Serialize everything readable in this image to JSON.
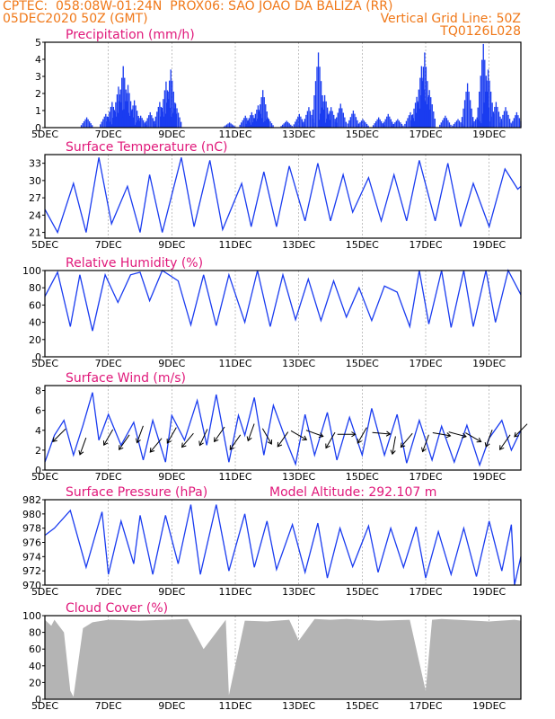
{
  "header": {
    "line1_left": "CPTEC:  058:08W-01:24N  PROX06: SAO JOAO DA BALIZA (RR)",
    "line2_left": "05DEC2020 50Z (GMT)",
    "line2_right": "Vertical Grid Line: 50Z",
    "line3_right": "TQ0126L028"
  },
  "x_labels": [
    "5DEC",
    "7DEC",
    "9DEC",
    "11DEC",
    "13DEC",
    "15DEC",
    "17DEC",
    "19DEC"
  ],
  "colors": {
    "accent": "#f07818",
    "title": "#e0187a",
    "line": "#1a3cf0",
    "bar": "#1a3cf0",
    "cloud": "#b4b4b4",
    "grid": "#999999"
  },
  "chart_data": [
    {
      "type": "bar",
      "title": "Precipitation (mm/h)",
      "ylim": [
        0,
        5
      ],
      "yticks": [
        "0",
        "1",
        "2",
        "3",
        "4",
        "5"
      ],
      "x_days": [
        5,
        20
      ],
      "peaks": [
        [
          6.3,
          0.6
        ],
        [
          6.9,
          0.8
        ],
        [
          7.1,
          1.5
        ],
        [
          7.3,
          2.4
        ],
        [
          7.45,
          3.6
        ],
        [
          7.6,
          2.5
        ],
        [
          7.8,
          1.6
        ],
        [
          8.0,
          0.7
        ],
        [
          8.3,
          0.9
        ],
        [
          8.6,
          1.5
        ],
        [
          8.8,
          2.7
        ],
        [
          8.95,
          3.4
        ],
        [
          9.1,
          1.4
        ],
        [
          10.8,
          0.3
        ],
        [
          11.3,
          0.7
        ],
        [
          11.5,
          0.9
        ],
        [
          11.7,
          1.3
        ],
        [
          11.85,
          2.2
        ],
        [
          12.0,
          0.6
        ],
        [
          12.6,
          0.4
        ],
        [
          13.0,
          0.8
        ],
        [
          13.3,
          1.2
        ],
        [
          13.6,
          4.4
        ],
        [
          13.8,
          1.9
        ],
        [
          14.0,
          1.2
        ],
        [
          14.3,
          1.4
        ],
        [
          14.7,
          1.0
        ],
        [
          15.0,
          0.5
        ],
        [
          15.5,
          0.6
        ],
        [
          15.8,
          0.8
        ],
        [
          16.1,
          0.5
        ],
        [
          16.5,
          0.9
        ],
        [
          16.7,
          1.8
        ],
        [
          16.85,
          3.6
        ],
        [
          16.95,
          4.4
        ],
        [
          17.1,
          2.2
        ],
        [
          17.6,
          0.7
        ],
        [
          18.0,
          0.5
        ],
        [
          18.3,
          2.6
        ],
        [
          18.6,
          0.6
        ],
        [
          18.8,
          4.9
        ],
        [
          18.95,
          3.4
        ],
        [
          19.2,
          1.5
        ],
        [
          19.5,
          1.2
        ],
        [
          19.85,
          0.9
        ]
      ]
    },
    {
      "type": "line",
      "title": "Surface Temperature (nC)",
      "ylim": [
        20,
        34.5
      ],
      "yticks": [
        "21",
        "24",
        "27",
        "30",
        "33"
      ],
      "x": [
        5,
        5.4,
        5.9,
        6.3,
        6.7,
        7.1,
        7.6,
        8.0,
        8.3,
        8.7,
        9.3,
        9.7,
        10.2,
        10.6,
        11.2,
        11.5,
        11.9,
        12.3,
        12.7,
        13.2,
        13.6,
        14.0,
        14.4,
        14.7,
        15.2,
        15.6,
        16.0,
        16.4,
        16.8,
        17.3,
        17.7,
        18.1,
        18.5,
        19.0,
        19.5,
        19.9,
        20.0
      ],
      "values": [
        25,
        21,
        29.5,
        21,
        34,
        22.5,
        29,
        21,
        31,
        21,
        34,
        22,
        33.5,
        21.5,
        29.5,
        22,
        31.5,
        22,
        32.5,
        23,
        33,
        23,
        31,
        24.5,
        30.5,
        23,
        31,
        23,
        33.5,
        23,
        33,
        22,
        29.5,
        22,
        32,
        28.5,
        29
      ]
    },
    {
      "type": "line",
      "title": "Relative Humidity (%)",
      "ylim": [
        0,
        100
      ],
      "yticks": [
        "0",
        "20",
        "40",
        "60",
        "80",
        "100"
      ],
      "x": [
        5,
        5.4,
        5.8,
        6.1,
        6.5,
        6.9,
        7.3,
        7.7,
        8.0,
        8.3,
        8.7,
        9.2,
        9.6,
        10.0,
        10.4,
        10.8,
        11.3,
        11.7,
        12.1,
        12.5,
        12.9,
        13.3,
        13.7,
        14.1,
        14.5,
        14.9,
        15.3,
        15.7,
        16.1,
        16.5,
        16.8,
        17.1,
        17.5,
        17.8,
        18.2,
        18.5,
        18.9,
        19.2,
        19.6,
        20.0
      ],
      "values": [
        70,
        98,
        35,
        95,
        30,
        95,
        63,
        95,
        98,
        65,
        100,
        88,
        37,
        95,
        36,
        95,
        40,
        100,
        35,
        95,
        43,
        90,
        42,
        88,
        46,
        80,
        42,
        82,
        75,
        35,
        100,
        38,
        100,
        34,
        100,
        35,
        100,
        40,
        100,
        72
      ]
    },
    {
      "type": "line",
      "title": "Surface Wind (m/s)",
      "ylim": [
        0,
        8.5
      ],
      "yticks": [
        "0",
        "2",
        "4",
        "6",
        "8"
      ],
      "x": [
        5,
        5.3,
        5.6,
        5.9,
        6.2,
        6.5,
        6.7,
        7.0,
        7.4,
        7.8,
        8.1,
        8.4,
        8.8,
        9.0,
        9.4,
        9.8,
        10.1,
        10.4,
        10.8,
        11.1,
        11.3,
        11.6,
        11.9,
        12.2,
        12.6,
        12.9,
        13.2,
        13.5,
        13.9,
        14.2,
        14.6,
        15.0,
        15.3,
        15.7,
        16.1,
        16.4,
        16.8,
        17.2,
        17.5,
        17.9,
        18.3,
        18.7,
        19.0,
        19.4,
        19.7,
        20.0
      ],
      "values": [
        0.8,
        3.5,
        5,
        1.5,
        4.5,
        7.8,
        3,
        5.6,
        2.5,
        4.8,
        1,
        5,
        0.8,
        5.5,
        3,
        7,
        2.5,
        7.6,
        0.8,
        5.5,
        3.5,
        7.3,
        1.5,
        6.5,
        3,
        0.6,
        5.6,
        1.5,
        5.8,
        1,
        5.3,
        1.5,
        6.2,
        1.5,
        5.6,
        0.7,
        5,
        1,
        4.4,
        0.8,
        4.5,
        0.5,
        3.2,
        5,
        2,
        4
      ]
    },
    {
      "type": "line",
      "title": "Surface Pressure (hPa)",
      "ylim": [
        970,
        982
      ],
      "yticks": [
        "970",
        "972",
        "974",
        "976",
        "978",
        "980",
        "982"
      ],
      "x": [
        5,
        5.3,
        5.8,
        6.3,
        6.8,
        7.0,
        7.4,
        7.8,
        8.0,
        8.4,
        8.8,
        9.2,
        9.6,
        9.9,
        10.4,
        10.8,
        11.3,
        11.6,
        12.0,
        12.3,
        12.8,
        13.2,
        13.6,
        13.9,
        14.3,
        14.7,
        15.2,
        15.5,
        15.9,
        16.3,
        16.7,
        17.0,
        17.4,
        17.8,
        18.2,
        18.6,
        19.0,
        19.4,
        19.7,
        19.8,
        20.0
      ],
      "values": [
        977,
        978,
        980.5,
        972.5,
        980.3,
        971.5,
        979,
        973,
        979.8,
        971.5,
        979.8,
        973,
        981.3,
        971.5,
        981.3,
        972,
        980,
        972.5,
        979,
        972.2,
        978.5,
        971.8,
        978.7,
        971,
        978,
        972.6,
        978.3,
        971.8,
        978,
        972.5,
        978.2,
        971,
        977.5,
        971.5,
        978,
        971.2,
        979,
        972,
        978.5,
        970,
        974
      ]
    },
    {
      "type": "area",
      "title": "Cloud Cover (%)",
      "ylim": [
        0,
        100
      ],
      "yticks": [
        "0",
        "20",
        "40",
        "60",
        "80",
        "100"
      ],
      "x": [
        5,
        5.2,
        5.3,
        5.6,
        5.8,
        5.9,
        6.2,
        6.5,
        7.0,
        8.0,
        9.5,
        10.0,
        10.7,
        10.8,
        11.3,
        12.0,
        12.7,
        13.0,
        13.5,
        14.0,
        14.5,
        15.5,
        16.5,
        17.0,
        17.2,
        17.5,
        18.0,
        19.0,
        19.8,
        20.0
      ],
      "values": [
        95,
        88,
        95,
        80,
        10,
        3,
        85,
        92,
        95,
        94,
        96,
        60,
        95,
        5,
        94,
        93,
        95,
        70,
        96,
        95,
        96,
        94,
        95,
        10,
        95,
        96,
        95,
        93,
        95,
        94
      ]
    }
  ],
  "panel_extra": {
    "pressure_altitude_label": "Model Altitude: 292.107 m"
  },
  "wind_barbs": [
    {
      "x": 5.45,
      "y": 3.5,
      "dir": 225
    },
    {
      "x": 6.2,
      "y": 2.4,
      "dir": 200
    },
    {
      "x": 7.0,
      "y": 3.3,
      "dir": 210
    },
    {
      "x": 7.5,
      "y": 2.8,
      "dir": 215
    },
    {
      "x": 8.0,
      "y": 3.6,
      "dir": 200
    },
    {
      "x": 8.5,
      "y": 2.5,
      "dir": 220
    },
    {
      "x": 9.0,
      "y": 3.5,
      "dir": 210
    },
    {
      "x": 9.5,
      "y": 3.0,
      "dir": 220
    },
    {
      "x": 10.0,
      "y": 3.3,
      "dir": 205
    },
    {
      "x": 10.5,
      "y": 3.6,
      "dir": 215
    },
    {
      "x": 11.0,
      "y": 2.8,
      "dir": 215
    },
    {
      "x": 11.5,
      "y": 3.8,
      "dir": 200
    },
    {
      "x": 12.0,
      "y": 3.4,
      "dir": 150
    },
    {
      "x": 12.5,
      "y": 3.1,
      "dir": 215
    },
    {
      "x": 13.0,
      "y": 3.5,
      "dir": 120
    },
    {
      "x": 13.5,
      "y": 3.7,
      "dir": 110
    },
    {
      "x": 14.0,
      "y": 3.0,
      "dir": 210
    },
    {
      "x": 14.5,
      "y": 3.6,
      "dir": 90
    },
    {
      "x": 15.0,
      "y": 3.5,
      "dir": 210
    },
    {
      "x": 15.6,
      "y": 3.7,
      "dir": 95
    },
    {
      "x": 16.0,
      "y": 2.5,
      "dir": 190
    },
    {
      "x": 16.4,
      "y": 3.0,
      "dir": 220
    },
    {
      "x": 17.0,
      "y": 2.7,
      "dir": 200
    },
    {
      "x": 17.5,
      "y": 3.6,
      "dir": 100
    },
    {
      "x": 18.0,
      "y": 3.6,
      "dir": 105
    },
    {
      "x": 18.5,
      "y": 3.3,
      "dir": 120
    },
    {
      "x": 19.0,
      "y": 3.2,
      "dir": 200
    },
    {
      "x": 19.5,
      "y": 2.8,
      "dir": 215
    },
    {
      "x": 20.0,
      "y": 4.0,
      "dir": 225
    }
  ]
}
